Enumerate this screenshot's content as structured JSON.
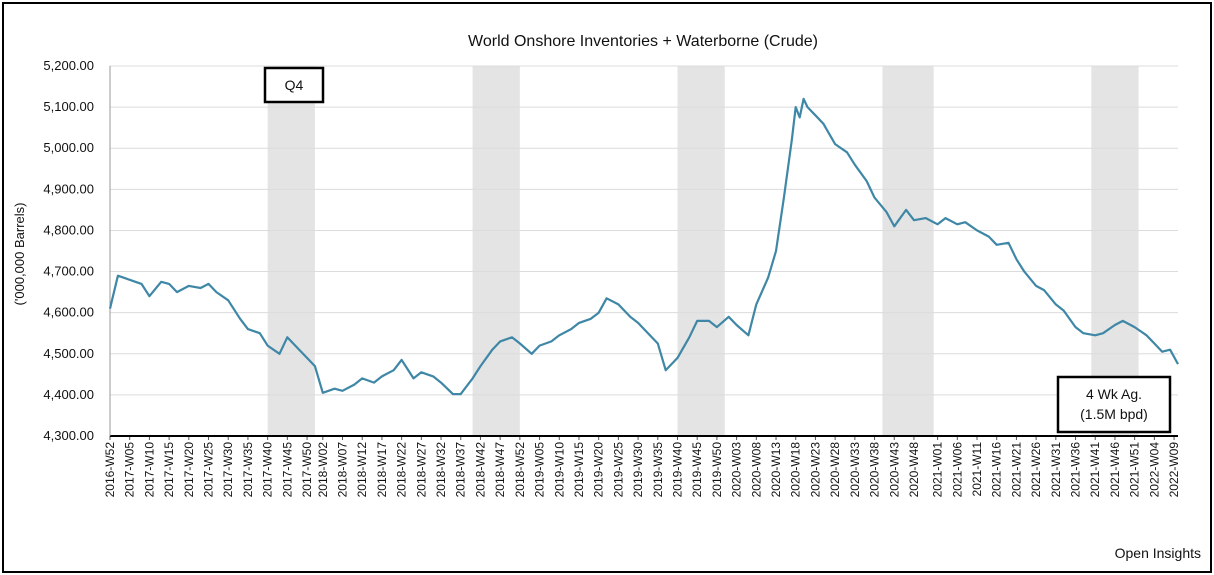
{
  "chart_data": {
    "type": "line",
    "title": "World Onshore Inventories + Waterborne (Crude)",
    "ylabel": "('000,000 Barrels)",
    "source": "Open Insights",
    "ylim": [
      4300,
      5200
    ],
    "ytick_values": [
      4300,
      4400,
      4500,
      4600,
      4700,
      4800,
      4900,
      5000,
      5100,
      5200
    ],
    "ytick_labels": [
      "4,300.00",
      "4,400.00",
      "4,500.00",
      "4,600.00",
      "4,700.00",
      "4,800.00",
      "4,900.00",
      "5,000.00",
      "5,100.00",
      "5,200.00"
    ],
    "x_start": "2016-W52",
    "x_end": "2022-W10",
    "x_tick_labels": [
      "2016-W52",
      "2017-W05",
      "2017-W10",
      "2017-W15",
      "2017-W20",
      "2017-W25",
      "2017-W30",
      "2017-W35",
      "2017-W40",
      "2017-W45",
      "2017-W50",
      "2018-W02",
      "2018-W07",
      "2018-W12",
      "2018-W17",
      "2018-W22",
      "2018-W27",
      "2018-W32",
      "2018-W37",
      "2018-W42",
      "2018-W47",
      "2018-W52",
      "2019-W05",
      "2019-W10",
      "2019-W15",
      "2019-W20",
      "2019-W25",
      "2019-W30",
      "2019-W35",
      "2019-W40",
      "2019-W45",
      "2019-W50",
      "2020-W03",
      "2020-W08",
      "2020-W13",
      "2020-W18",
      "2020-W23",
      "2020-W28",
      "2020-W33",
      "2020-W38",
      "2020-W43",
      "2020-W48",
      "2021-W01",
      "2021-W06",
      "2021-W11",
      "2021-W16",
      "2021-W21",
      "2021-W26",
      "2021-W31",
      "2021-W36",
      "2021-W41",
      "2021-W46",
      "2021-W51",
      "2022-W04",
      "2022-W09"
    ],
    "shaded_periods": [
      {
        "from": "2017-W40",
        "to": "2017-W52"
      },
      {
        "from": "2018-W40",
        "to": "2018-W52"
      },
      {
        "from": "2019-W40",
        "to": "2019-W52"
      },
      {
        "from": "2020-W40",
        "to": "2020-W53"
      },
      {
        "from": "2021-W40",
        "to": "2021-W52"
      }
    ],
    "annotations": {
      "q4_label": "Q4",
      "avg_line1": "4 Wk Ag.",
      "avg_line2": "(1.5M bpd)"
    },
    "grid": true,
    "color": "#3f87a6",
    "series": [
      {
        "x": [
          "2016-W52",
          "2017-W02",
          "2017-W05",
          "2017-W08",
          "2017-W10",
          "2017-W13",
          "2017-W15",
          "2017-W17",
          "2017-W20",
          "2017-W23",
          "2017-W25",
          "2017-W27",
          "2017-W30",
          "2017-W33",
          "2017-W35",
          "2017-W38",
          "2017-W40",
          "2017-W43",
          "2017-W45",
          "2017-W48",
          "2017-W50",
          "2017-W52",
          "2018-W02",
          "2018-W05",
          "2018-W07",
          "2018-W10",
          "2018-W12",
          "2018-W15",
          "2018-W17",
          "2018-W20",
          "2018-W22",
          "2018-W25",
          "2018-W27",
          "2018-W30",
          "2018-W32",
          "2018-W35",
          "2018-W37",
          "2018-W40",
          "2018-W42",
          "2018-W45",
          "2018-W47",
          "2018-W50",
          "2018-W52",
          "2019-W03",
          "2019-W05",
          "2019-W08",
          "2019-W10",
          "2019-W13",
          "2019-W15",
          "2019-W18",
          "2019-W20",
          "2019-W22",
          "2019-W25",
          "2019-W28",
          "2019-W30",
          "2019-W33",
          "2019-W35",
          "2019-W37",
          "2019-W40",
          "2019-W43",
          "2019-W45",
          "2019-W48",
          "2019-W50",
          "2020-W01",
          "2020-W03",
          "2020-W06",
          "2020-W08",
          "2020-W11",
          "2020-W13",
          "2020-W15",
          "2020-W17",
          "2020-W18",
          "2020-W19",
          "2020-W20",
          "2020-W21",
          "2020-W23",
          "2020-W25",
          "2020-W28",
          "2020-W31",
          "2020-W33",
          "2020-W36",
          "2020-W38",
          "2020-W41",
          "2020-W43",
          "2020-W46",
          "2020-W48",
          "2020-W51",
          "2021-W01",
          "2021-W03",
          "2021-W06",
          "2021-W08",
          "2021-W11",
          "2021-W14",
          "2021-W16",
          "2021-W19",
          "2021-W21",
          "2021-W23",
          "2021-W26",
          "2021-W28",
          "2021-W31",
          "2021-W33",
          "2021-W36",
          "2021-W38",
          "2021-W41",
          "2021-W43",
          "2021-W46",
          "2021-W48",
          "2021-W51",
          "2022-W02",
          "2022-W04",
          "2022-W06",
          "2022-W08",
          "2022-W10"
        ],
        "values": [
          4610,
          4690,
          4680,
          4670,
          4640,
          4675,
          4670,
          4650,
          4665,
          4660,
          4670,
          4650,
          4630,
          4585,
          4560,
          4550,
          4520,
          4500,
          4540,
          4510,
          4490,
          4470,
          4405,
          4415,
          4410,
          4425,
          4440,
          4430,
          4445,
          4460,
          4485,
          4440,
          4455,
          4445,
          4430,
          4402,
          4402,
          4440,
          4470,
          4510,
          4530,
          4540,
          4525,
          4500,
          4520,
          4530,
          4545,
          4560,
          4575,
          4585,
          4600,
          4635,
          4620,
          4590,
          4575,
          4545,
          4525,
          4460,
          4490,
          4540,
          4580,
          4580,
          4565,
          4590,
          4570,
          4545,
          4620,
          4685,
          4750,
          4880,
          5020,
          5100,
          5075,
          5120,
          5100,
          5080,
          5060,
          5010,
          4990,
          4960,
          4920,
          4880,
          4845,
          4810,
          4850,
          4825,
          4830,
          4815,
          4830,
          4815,
          4820,
          4800,
          4785,
          4765,
          4770,
          4730,
          4700,
          4665,
          4655,
          4620,
          4605,
          4565,
          4550,
          4545,
          4550,
          4570,
          4580,
          4565,
          4545,
          4525,
          4505,
          4510,
          4475
        ]
      }
    ]
  }
}
